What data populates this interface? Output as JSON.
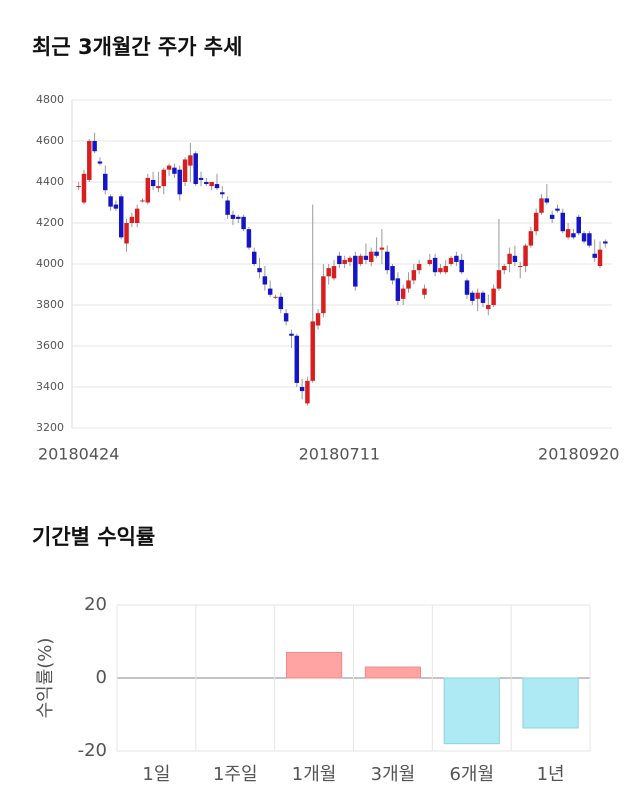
{
  "chart_data": [
    {
      "type": "candlestick",
      "title": "최근 3개월간 주가 추세",
      "categories": [
        "20180424",
        null,
        null,
        null,
        null,
        null,
        null,
        null,
        null,
        null,
        null,
        null,
        null,
        null,
        null,
        null,
        null,
        null,
        null,
        null,
        null,
        null,
        null,
        null,
        null,
        null,
        null,
        null,
        null,
        null,
        null,
        null,
        null,
        null,
        null,
        null,
        null,
        null,
        null,
        null,
        null,
        null,
        null,
        null,
        null,
        null,
        null,
        null,
        null,
        "20180711",
        null,
        null,
        null,
        null,
        null,
        null,
        null,
        null,
        null,
        null,
        null,
        null,
        null,
        null,
        null,
        null,
        null,
        null,
        null,
        null,
        null,
        null,
        null,
        null,
        null,
        null,
        null,
        null,
        null,
        null,
        null,
        null,
        null,
        null,
        null,
        null,
        null,
        null,
        null,
        null,
        null,
        null,
        null,
        null,
        "20180920",
        null,
        null,
        null,
        null,
        null
      ],
      "open": [
        4380,
        4300,
        4410,
        4600,
        4500,
        4440,
        4330,
        4290,
        4330,
        4100,
        4200,
        4200,
        4310,
        4300,
        4410,
        4370,
        4380,
        4460,
        4470,
        4460,
        4400,
        4480,
        4540,
        4420,
        4400,
        4380,
        4390,
        4350,
        4310,
        4240,
        4230,
        4230,
        4170,
        4060,
        3980,
        3940,
        3880,
        3840,
        3840,
        3760,
        3660,
        3650,
        3400,
        3320,
        3430,
        3700,
        3760,
        3940,
        3930,
        4040,
        4000,
        4010,
        4040,
        4000,
        4040,
        4010,
        4060,
        4070,
        4060,
        3990,
        3930,
        3830,
        3880,
        3920,
        3970,
        3850,
        4000,
        4030,
        3960,
        3960,
        4000,
        4040,
        4020,
        3920,
        3860,
        3830,
        3860,
        3780,
        3800,
        3880,
        3970,
        4000,
        4040,
        3990,
        3990,
        4090,
        4160,
        4250,
        4320,
        4240,
        4270,
        4250,
        4130,
        4150,
        4230,
        4150,
        4150,
        4050,
        3990,
        4110
      ],
      "high": [
        4400,
        4460,
        4610,
        4640,
        4520,
        4480,
        4340,
        4310,
        4340,
        4220,
        4250,
        4290,
        4320,
        4440,
        4450,
        4450,
        4470,
        4490,
        4490,
        4480,
        4520,
        4590,
        4550,
        4450,
        4420,
        4400,
        4440,
        4380,
        4330,
        4260,
        4240,
        4240,
        4180,
        4080,
        4030,
        3990,
        3920,
        3850,
        3860,
        3780,
        3680,
        3660,
        3440,
        3450,
        4290,
        3780,
        4000,
        4000,
        4020,
        4060,
        4040,
        4040,
        4060,
        4050,
        4100,
        4080,
        4130,
        4170,
        4090,
        4000,
        3960,
        3900,
        3960,
        4000,
        4020,
        3900,
        4050,
        4050,
        4000,
        4020,
        4040,
        4060,
        4050,
        3930,
        3870,
        3880,
        3870,
        3850,
        3900,
        4220,
        4000,
        4080,
        4090,
        4010,
        4100,
        4180,
        4270,
        4340,
        4390,
        4260,
        4290,
        4270,
        4200,
        4170,
        4240,
        4160,
        4160,
        4120,
        4110,
        4120
      ],
      "low": [
        4360,
        4290,
        4400,
        4540,
        4480,
        4340,
        4260,
        4260,
        4120,
        4060,
        4180,
        4180,
        4300,
        4290,
        4360,
        4350,
        4340,
        4430,
        4420,
        4310,
        4380,
        4400,
        4380,
        4380,
        4380,
        4360,
        4360,
        4320,
        4220,
        4190,
        4200,
        4160,
        4070,
        3990,
        3930,
        3870,
        3840,
        3830,
        3760,
        3700,
        3590,
        3400,
        3340,
        3310,
        3420,
        3680,
        3740,
        3900,
        3920,
        3980,
        3980,
        3990,
        3870,
        3990,
        4000,
        3990,
        4030,
        4000,
        3950,
        3900,
        3800,
        3800,
        3860,
        3900,
        3950,
        3830,
        3990,
        3940,
        3950,
        3950,
        3990,
        3990,
        3950,
        3830,
        3800,
        3770,
        3790,
        3750,
        3790,
        3870,
        3950,
        3960,
        3990,
        3930,
        3960,
        4080,
        4140,
        4240,
        4290,
        4200,
        4250,
        4150,
        4120,
        4120,
        4140,
        4100,
        4080,
        4010,
        3980,
        4080
      ],
      "close": [
        4380,
        4440,
        4600,
        4550,
        4490,
        4360,
        4280,
        4270,
        4130,
        4200,
        4230,
        4270,
        4310,
        4420,
        4380,
        4380,
        4460,
        4480,
        4440,
        4340,
        4510,
        4530,
        4390,
        4410,
        4390,
        4400,
        4370,
        4340,
        4240,
        4220,
        4220,
        4170,
        4080,
        4000,
        3960,
        3900,
        3850,
        3840,
        3780,
        3720,
        3650,
        3420,
        3380,
        3430,
        3720,
        3760,
        3940,
        3980,
        3990,
        4000,
        4020,
        4030,
        3890,
        4040,
        4020,
        4060,
        4040,
        4080,
        3970,
        3920,
        3820,
        3880,
        3920,
        3970,
        4000,
        3880,
        4020,
        3960,
        3980,
        3990,
        4030,
        4010,
        3960,
        3850,
        3820,
        3860,
        3810,
        3800,
        3880,
        3970,
        3990,
        4050,
        4010,
        3990,
        4090,
        4160,
        4250,
        4320,
        4300,
        4220,
        4260,
        4160,
        4170,
        4130,
        4150,
        4110,
        4090,
        4030,
        4070,
        4100
      ],
      "up_color": "#d81e1e",
      "down_color": "#1414c8",
      "ylim": [
        3200,
        4800
      ],
      "yticks": [
        3200,
        3400,
        3600,
        3800,
        4000,
        4200,
        4400,
        4600,
        4800
      ],
      "grid": true
    },
    {
      "type": "bar",
      "title": "기간별 수익률",
      "ylabel": "수익률(%)",
      "categories": [
        "1일",
        "1주일",
        "1개월",
        "3개월",
        "6개월",
        "1년"
      ],
      "values": [
        0,
        0,
        7,
        3,
        -18,
        -13.7
      ],
      "colors": [
        "#ffa3a3",
        "#ffa3a3",
        "#ffa3a3",
        "#ffa3a3",
        "#aeeaf3",
        "#aeeaf3"
      ],
      "ylim": [
        -20,
        20
      ],
      "yticks": [
        -20,
        0,
        20
      ],
      "grid": true
    }
  ]
}
